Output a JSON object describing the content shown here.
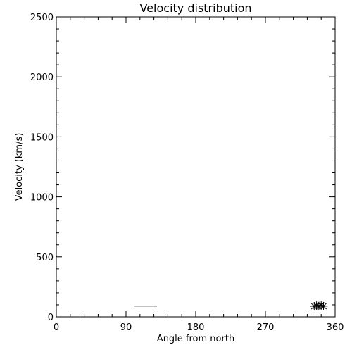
{
  "chart_data": {
    "type": "scatter",
    "title": "Velocity distribution",
    "xlabel": "Angle from north",
    "ylabel": "Velocity (km/s)",
    "xlim": [
      0,
      360
    ],
    "ylim": [
      0,
      2500
    ],
    "x_ticks": [
      0,
      90,
      180,
      270,
      360
    ],
    "y_ticks": [
      0,
      500,
      1000,
      1500,
      2000,
      2500
    ],
    "x_minor_step": 18,
    "y_minor_step": 100,
    "grid": false,
    "marker": "asterisk",
    "line_segments": [
      {
        "x": [
          100,
          130
        ],
        "y": [
          90,
          90
        ]
      }
    ],
    "points": [
      {
        "x": 333,
        "y": 88
      },
      {
        "x": 336,
        "y": 93
      },
      {
        "x": 339,
        "y": 90
      },
      {
        "x": 342,
        "y": 95
      },
      {
        "x": 345,
        "y": 89
      }
    ]
  }
}
